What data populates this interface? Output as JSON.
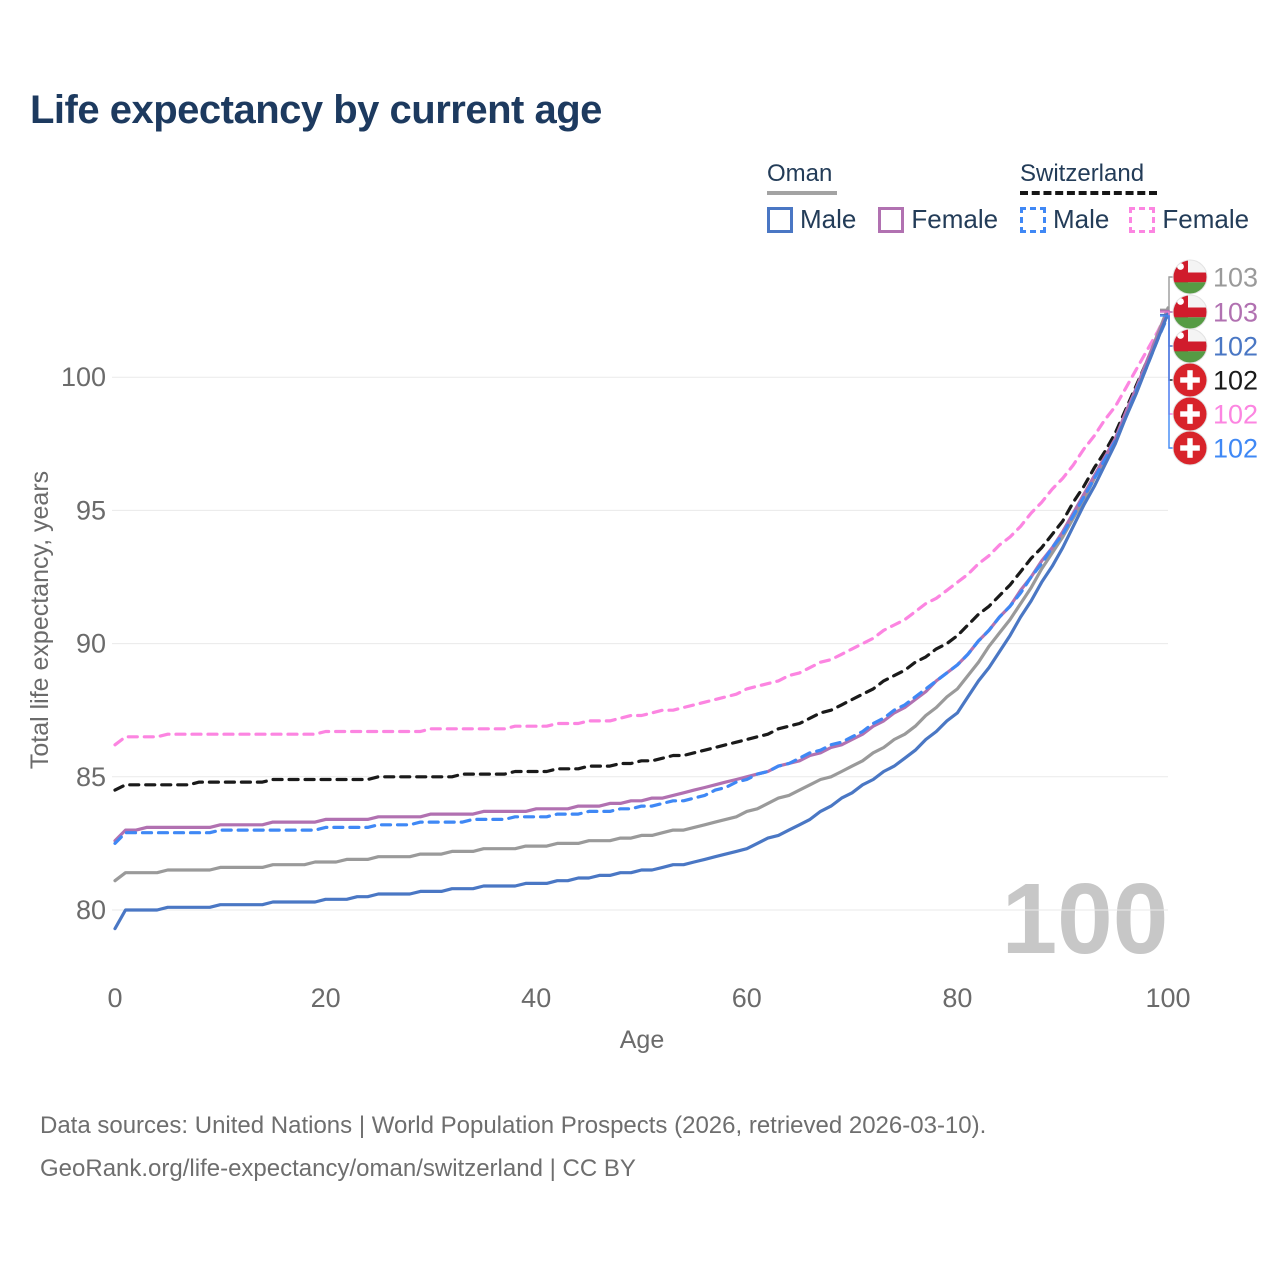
{
  "title": "Life expectancy by current age",
  "legend": {
    "groups": [
      {
        "name": "Oman",
        "style": "solid",
        "underline_color": "#a3a3a3",
        "items": [
          {
            "label": "Male",
            "color": "#4a77c4"
          },
          {
            "label": "Female",
            "color": "#b171b1"
          }
        ]
      },
      {
        "name": "Switzerland",
        "style": "dashed",
        "underline_color": "#161616",
        "items": [
          {
            "label": "Male",
            "color": "#3f88f5"
          },
          {
            "label": "Female",
            "color": "#fc85e1"
          }
        ]
      }
    ]
  },
  "watermark": "100",
  "footer": {
    "line1": "Data sources: United Nations | World Population Prospects (2026, retrieved 2026-03-10).",
    "line2": "GeoRank.org/life-expectancy/oman/switzerland | CC BY"
  },
  "chart_data": {
    "type": "line",
    "title": "Life expectancy by current age",
    "xlabel": "Age",
    "ylabel": "Total life expectancy, years",
    "xlim": [
      0,
      100
    ],
    "ylim": [
      79,
      103.5
    ],
    "xticks": [
      0,
      20,
      40,
      60,
      80,
      100
    ],
    "yticks": [
      80,
      85,
      90,
      95,
      100
    ],
    "grid": "horizontal",
    "legend_position": "top-right",
    "x": [
      0,
      1,
      3,
      5,
      10,
      15,
      20,
      25,
      30,
      35,
      40,
      45,
      50,
      55,
      60,
      65,
      70,
      75,
      80,
      85,
      90,
      95,
      100
    ],
    "draw_order": [
      4,
      3,
      0,
      1,
      5,
      2
    ],
    "series": [
      {
        "name": "Oman total",
        "country": "Oman",
        "sex": "total",
        "color": "#9a9a9a",
        "dash": false,
        "flag": "oman",
        "end_label": "103",
        "values": [
          81.05,
          81.35,
          81.4,
          81.45,
          81.55,
          81.65,
          81.8,
          81.95,
          82.1,
          82.25,
          82.4,
          82.55,
          82.75,
          83.1,
          83.65,
          84.5,
          85.4,
          86.6,
          88.3,
          90.9,
          94.0,
          97.6,
          102.55
        ]
      },
      {
        "name": "Oman female",
        "country": "Oman",
        "sex": "female",
        "color": "#b171b1",
        "dash": false,
        "flag": "oman",
        "end_label": "103",
        "values": [
          82.6,
          83.0,
          83.05,
          83.1,
          83.15,
          83.25,
          83.35,
          83.45,
          83.55,
          83.65,
          83.75,
          83.9,
          84.1,
          84.45,
          85.0,
          85.6,
          86.4,
          87.6,
          89.2,
          91.4,
          94.2,
          97.7,
          102.5
        ]
      },
      {
        "name": "Oman male",
        "country": "Oman",
        "sex": "male",
        "color": "#4a77c4",
        "dash": false,
        "flag": "oman",
        "end_label": "102",
        "values": [
          79.3,
          79.95,
          80.0,
          80.05,
          80.15,
          80.25,
          80.35,
          80.55,
          80.7,
          80.85,
          81.0,
          81.2,
          81.45,
          81.8,
          82.3,
          83.2,
          84.4,
          85.7,
          87.4,
          90.3,
          93.6,
          97.5,
          102.35
        ]
      },
      {
        "name": "Switzerland total",
        "country": "Switzerland",
        "sex": "total",
        "color": "#1a1a1a",
        "dash": true,
        "flag": "switzerland",
        "end_label": "102",
        "values": [
          84.5,
          84.65,
          84.7,
          84.72,
          84.78,
          84.85,
          84.9,
          84.95,
          85.0,
          85.1,
          85.2,
          85.35,
          85.55,
          85.9,
          86.4,
          87.0,
          87.9,
          89.0,
          90.3,
          92.2,
          94.6,
          97.9,
          102.45
        ]
      },
      {
        "name": "Switzerland female",
        "country": "Switzerland",
        "sex": "female",
        "color": "#fc85e1",
        "dash": true,
        "flag": "switzerland",
        "end_label": "102",
        "values": [
          86.2,
          86.45,
          86.5,
          86.55,
          86.6,
          86.62,
          86.65,
          86.7,
          86.75,
          86.8,
          86.9,
          87.05,
          87.3,
          87.7,
          88.25,
          88.9,
          89.8,
          90.9,
          92.3,
          94.0,
          96.2,
          98.9,
          102.45
        ]
      },
      {
        "name": "Switzerland male",
        "country": "Switzerland",
        "sex": "male",
        "color": "#3f88f5",
        "dash": true,
        "flag": "switzerland",
        "end_label": "102",
        "values": [
          82.5,
          82.85,
          82.88,
          82.9,
          82.95,
          83.0,
          83.05,
          83.15,
          83.28,
          83.38,
          83.5,
          83.65,
          83.85,
          84.2,
          84.9,
          85.7,
          86.5,
          87.7,
          89.2,
          91.4,
          94.1,
          97.6,
          102.3
        ]
      }
    ]
  }
}
